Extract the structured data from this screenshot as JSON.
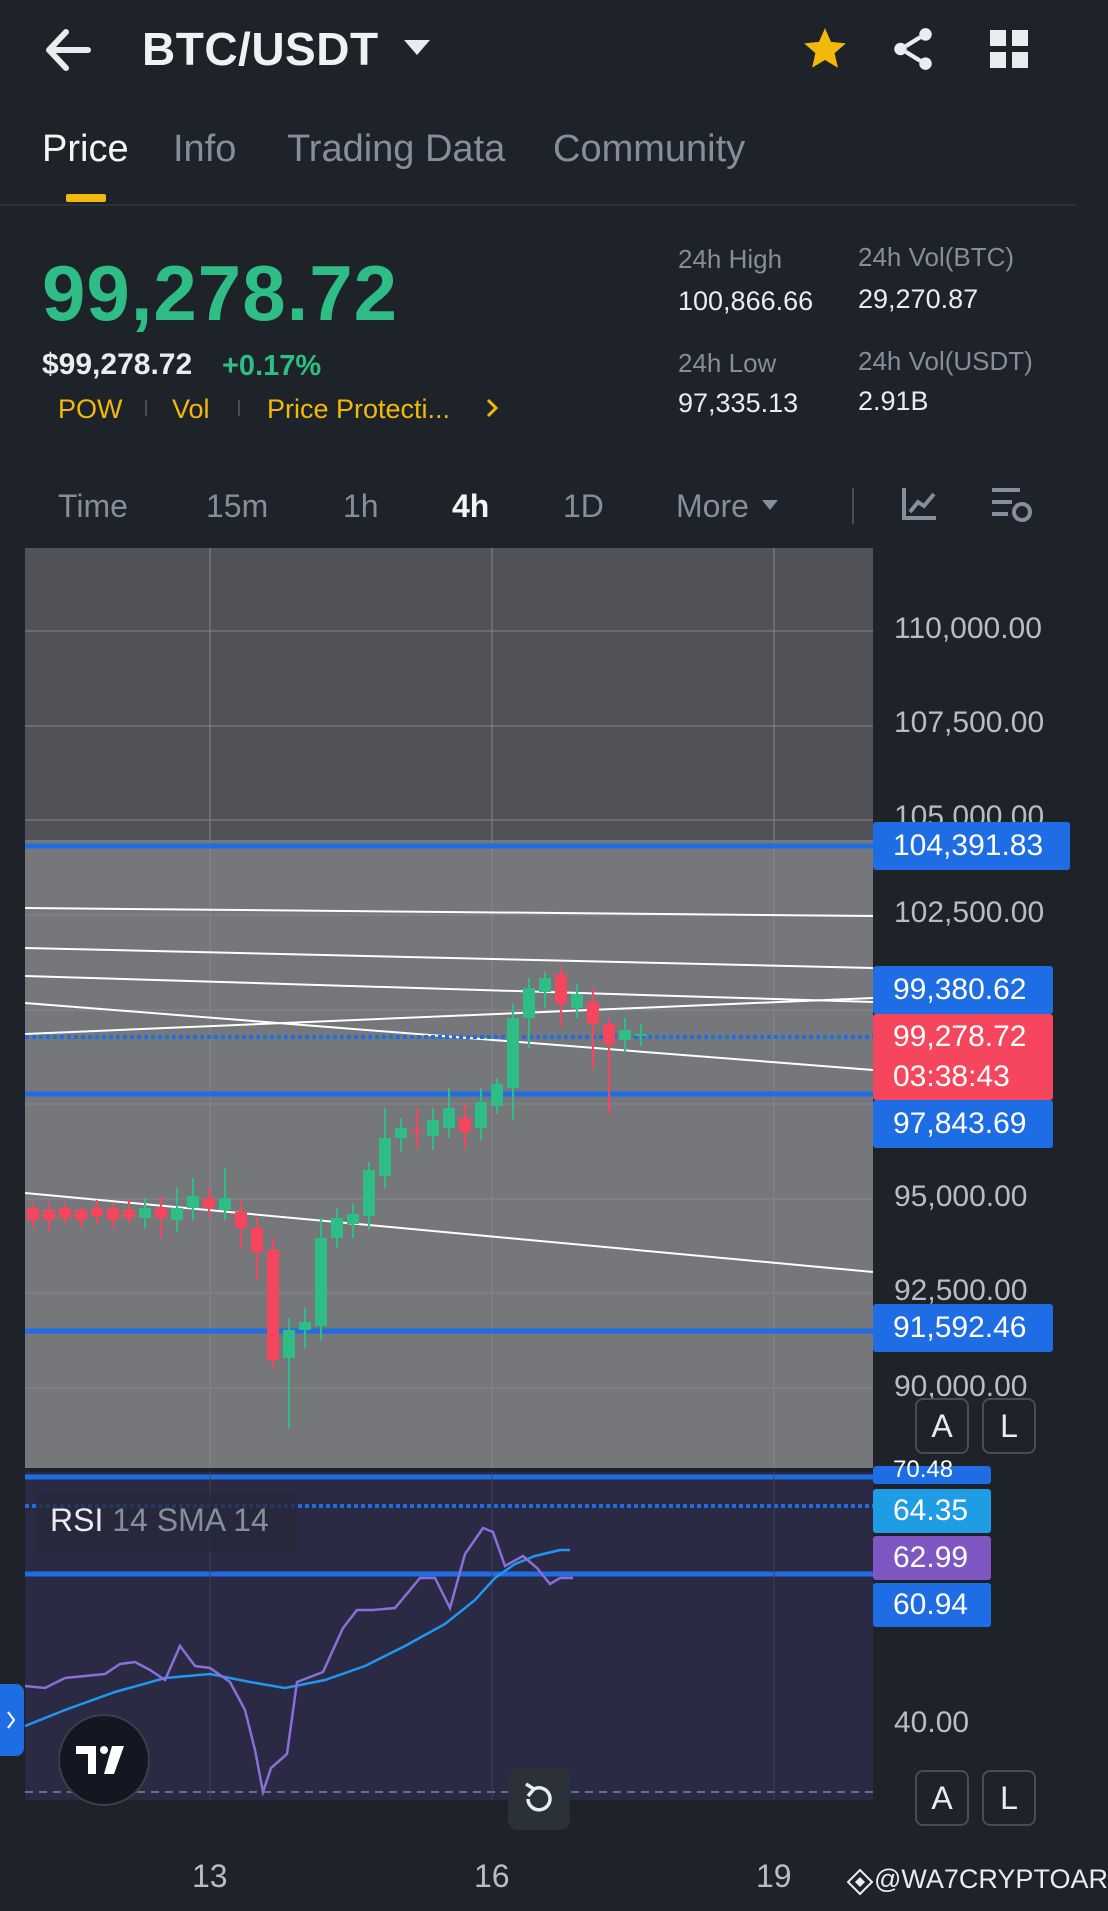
{
  "header": {
    "title": "BTC/USDT"
  },
  "tabs": [
    {
      "label": "Price",
      "active": true
    },
    {
      "label": "Info",
      "active": false
    },
    {
      "label": "Trading Data",
      "active": false
    },
    {
      "label": "Community",
      "active": false
    }
  ],
  "ticker": {
    "last_price": "99,278.72",
    "usd_price": "$99,278.72",
    "change_pct": "+0.17%",
    "tags": [
      "POW",
      "Vol",
      "Price Protecti..."
    ],
    "high_label": "24h High",
    "high_value": "100,866.66",
    "low_label": "24h Low",
    "low_value": "97,335.13",
    "vol_btc_label": "24h Vol(BTC)",
    "vol_btc_value": "29,270.87",
    "vol_usdt_label": "24h Vol(USDT)",
    "vol_usdt_value": "2.91B"
  },
  "intervals": {
    "items": [
      "Time",
      "15m",
      "1h",
      "4h",
      "1D",
      "More"
    ],
    "active": "4h"
  },
  "chart": {
    "axis_labels": [
      "110,000.00",
      "107,500.00",
      "105,000.00",
      "102,500.00",
      "95,000.00",
      "92,500.00",
      "90,000.00"
    ],
    "price_tags": {
      "level_1": "104,391.83",
      "level_2": "99,380.62",
      "current": "99,278.72",
      "countdown": "03:38:43",
      "level_3": "97,843.69",
      "level_4": "91,592.46"
    },
    "btn_a": "A",
    "btn_l": "L",
    "dates": [
      "13",
      "16",
      "19"
    ]
  },
  "rsi": {
    "label_main": "RSI",
    "label_params": "14 SMA 14",
    "tag_top": "70.48",
    "tag_1": "64.35",
    "tag_2": "62.99",
    "tag_3": "60.94",
    "axis_40": "40.00"
  },
  "colors": {
    "up": "#2ebd85",
    "down": "#f6465d",
    "accent": "#f0b90b",
    "line_blue": "#1e6de5",
    "rsi_line": "#8a6fd8",
    "sma_line": "#2196f3"
  },
  "watermark": "@WA7CRYPTOAR"
}
